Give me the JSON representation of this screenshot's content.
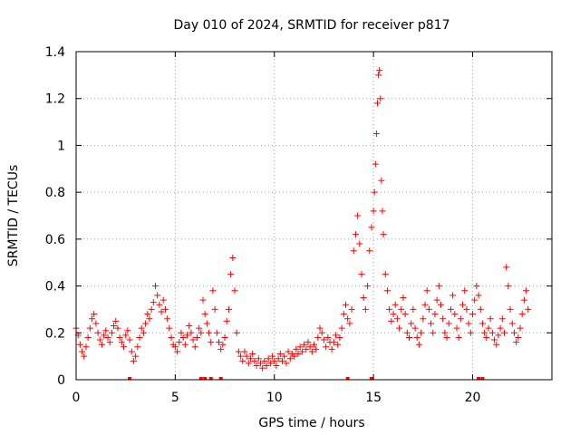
{
  "chart_data": {
    "type": "scatter",
    "title": "Day 010 of 2024, SRMTID for receiver p817",
    "xlabel": "GPS time / hours",
    "ylabel": "SRMTID / TECUs",
    "xlim": [
      0,
      24
    ],
    "ylim": [
      0,
      1.4
    ],
    "x_ticks": [
      0,
      5,
      10,
      15,
      20
    ],
    "x_tick_labels": [
      "0",
      "5",
      "10",
      "15",
      "20"
    ],
    "y_ticks": [
      0,
      0.2,
      0.4,
      0.6,
      0.8,
      1.0,
      1.2,
      1.4
    ],
    "y_tick_labels": [
      "0",
      "0.2",
      "0.4",
      "0.6",
      "0.8",
      "1",
      "1.2",
      "1.4"
    ],
    "grid": true,
    "marker": "plus",
    "color": "#ff0000",
    "series": [
      {
        "name": "SRMTID",
        "points": [
          [
            0.0,
            0.22
          ],
          [
            0.1,
            0.19
          ],
          [
            0.2,
            0.15
          ],
          [
            0.3,
            0.12
          ],
          [
            0.4,
            0.1
          ],
          [
            0.5,
            0.14
          ],
          [
            0.6,
            0.18
          ],
          [
            0.7,
            0.22
          ],
          [
            0.8,
            0.26
          ],
          [
            0.9,
            0.28
          ],
          [
            1.0,
            0.24
          ],
          [
            1.1,
            0.2
          ],
          [
            1.2,
            0.17
          ],
          [
            1.3,
            0.15
          ],
          [
            1.4,
            0.19
          ],
          [
            1.5,
            0.21
          ],
          [
            1.6,
            0.18
          ],
          [
            1.7,
            0.16
          ],
          [
            1.8,
            0.2
          ],
          [
            1.9,
            0.23
          ],
          [
            2.0,
            0.25
          ],
          [
            2.1,
            0.22
          ],
          [
            2.2,
            0.18
          ],
          [
            2.3,
            0.16
          ],
          [
            2.4,
            0.14
          ],
          [
            2.5,
            0.19
          ],
          [
            2.6,
            0.21
          ],
          [
            2.7,
            0.17
          ],
          [
            2.8,
            0.12
          ],
          [
            2.9,
            0.08
          ],
          [
            3.0,
            0.1
          ],
          [
            3.1,
            0.14
          ],
          [
            3.2,
            0.18
          ],
          [
            3.3,
            0.22
          ],
          [
            3.4,
            0.2
          ],
          [
            3.5,
            0.24
          ],
          [
            3.6,
            0.28
          ],
          [
            3.7,
            0.26
          ],
          [
            3.8,
            0.3
          ],
          [
            3.9,
            0.33
          ],
          [
            4.0,
            0.4
          ],
          [
            4.1,
            0.36
          ],
          [
            4.2,
            0.32
          ],
          [
            4.3,
            0.29
          ],
          [
            4.4,
            0.34
          ],
          [
            4.5,
            0.3
          ],
          [
            4.6,
            0.26
          ],
          [
            4.7,
            0.22
          ],
          [
            4.8,
            0.18
          ],
          [
            4.9,
            0.15
          ],
          [
            5.0,
            0.14
          ],
          [
            5.1,
            0.12
          ],
          [
            5.2,
            0.16
          ],
          [
            5.3,
            0.2
          ],
          [
            5.4,
            0.18
          ],
          [
            5.5,
            0.15
          ],
          [
            5.6,
            0.19
          ],
          [
            5.7,
            0.23
          ],
          [
            5.8,
            0.2
          ],
          [
            5.9,
            0.17
          ],
          [
            6.0,
            0.14
          ],
          [
            6.1,
            0.18
          ],
          [
            6.2,
            0.22
          ],
          [
            6.3,
            0.2
          ],
          [
            6.4,
            0.34
          ],
          [
            6.5,
            0.28
          ],
          [
            6.6,
            0.24
          ],
          [
            6.7,
            0.2
          ],
          [
            6.8,
            0.16
          ],
          [
            6.9,
            0.38
          ],
          [
            7.0,
            0.3
          ],
          [
            7.1,
            0.2
          ],
          [
            7.2,
            0.16
          ],
          [
            7.3,
            0.13
          ],
          [
            7.4,
            0.15
          ],
          [
            7.5,
            0.18
          ],
          [
            7.6,
            0.25
          ],
          [
            7.7,
            0.3
          ],
          [
            7.8,
            0.45
          ],
          [
            7.9,
            0.52
          ],
          [
            8.0,
            0.38
          ],
          [
            8.1,
            0.2
          ],
          [
            8.2,
            0.12
          ],
          [
            8.3,
            0.1
          ],
          [
            8.4,
            0.08
          ],
          [
            8.5,
            0.12
          ],
          [
            8.6,
            0.1
          ],
          [
            8.7,
            0.07
          ],
          [
            8.8,
            0.09
          ],
          [
            8.9,
            0.11
          ],
          [
            9.0,
            0.08
          ],
          [
            9.1,
            0.06
          ],
          [
            9.2,
            0.09
          ],
          [
            9.3,
            0.07
          ],
          [
            9.4,
            0.05
          ],
          [
            9.5,
            0.08
          ],
          [
            9.6,
            0.06
          ],
          [
            9.7,
            0.09
          ],
          [
            9.8,
            0.07
          ],
          [
            9.9,
            0.1
          ],
          [
            10.0,
            0.08
          ],
          [
            10.1,
            0.06
          ],
          [
            10.2,
            0.09
          ],
          [
            10.3,
            0.11
          ],
          [
            10.4,
            0.08
          ],
          [
            10.5,
            0.1
          ],
          [
            10.6,
            0.07
          ],
          [
            10.7,
            0.12
          ],
          [
            10.8,
            0.09
          ],
          [
            10.9,
            0.11
          ],
          [
            11.0,
            0.1
          ],
          [
            11.1,
            0.13
          ],
          [
            11.2,
            0.11
          ],
          [
            11.3,
            0.14
          ],
          [
            11.4,
            0.12
          ],
          [
            11.5,
            0.15
          ],
          [
            11.6,
            0.13
          ],
          [
            11.7,
            0.16
          ],
          [
            11.8,
            0.14
          ],
          [
            11.9,
            0.12
          ],
          [
            12.0,
            0.15
          ],
          [
            12.1,
            0.13
          ],
          [
            12.2,
            0.18
          ],
          [
            12.3,
            0.22
          ],
          [
            12.4,
            0.2
          ],
          [
            12.5,
            0.17
          ],
          [
            12.6,
            0.14
          ],
          [
            12.7,
            0.18
          ],
          [
            12.8,
            0.16
          ],
          [
            12.9,
            0.13
          ],
          [
            13.0,
            0.16
          ],
          [
            13.1,
            0.19
          ],
          [
            13.2,
            0.15
          ],
          [
            13.3,
            0.18
          ],
          [
            13.4,
            0.22
          ],
          [
            13.5,
            0.28
          ],
          [
            13.6,
            0.32
          ],
          [
            13.7,
            0.26
          ],
          [
            13.8,
            0.24
          ],
          [
            13.9,
            0.3
          ],
          [
            14.0,
            0.55
          ],
          [
            14.1,
            0.62
          ],
          [
            14.2,
            0.7
          ],
          [
            14.3,
            0.58
          ],
          [
            14.4,
            0.45
          ],
          [
            14.5,
            0.35
          ],
          [
            14.6,
            0.3
          ],
          [
            14.7,
            0.4
          ],
          [
            14.8,
            0.55
          ],
          [
            14.9,
            0.65
          ],
          [
            15.0,
            0.72
          ],
          [
            15.05,
            0.8
          ],
          [
            15.1,
            0.92
          ],
          [
            15.15,
            1.05
          ],
          [
            15.2,
            1.18
          ],
          [
            15.25,
            1.3
          ],
          [
            15.3,
            1.32
          ],
          [
            15.35,
            1.2
          ],
          [
            15.4,
            0.85
          ],
          [
            15.45,
            0.72
          ],
          [
            15.5,
            0.62
          ],
          [
            15.6,
            0.45
          ],
          [
            15.7,
            0.38
          ],
          [
            15.8,
            0.3
          ],
          [
            15.9,
            0.25
          ],
          [
            16.0,
            0.28
          ],
          [
            16.1,
            0.32
          ],
          [
            16.2,
            0.26
          ],
          [
            16.3,
            0.22
          ],
          [
            16.4,
            0.3
          ],
          [
            16.5,
            0.35
          ],
          [
            16.6,
            0.28
          ],
          [
            16.7,
            0.2
          ],
          [
            16.8,
            0.18
          ],
          [
            16.9,
            0.24
          ],
          [
            17.0,
            0.3
          ],
          [
            17.1,
            0.22
          ],
          [
            17.2,
            0.18
          ],
          [
            17.3,
            0.15
          ],
          [
            17.4,
            0.2
          ],
          [
            17.5,
            0.26
          ],
          [
            17.6,
            0.32
          ],
          [
            17.7,
            0.38
          ],
          [
            17.8,
            0.3
          ],
          [
            17.9,
            0.24
          ],
          [
            18.0,
            0.2
          ],
          [
            18.1,
            0.28
          ],
          [
            18.2,
            0.34
          ],
          [
            18.3,
            0.4
          ],
          [
            18.4,
            0.32
          ],
          [
            18.5,
            0.26
          ],
          [
            18.6,
            0.2
          ],
          [
            18.7,
            0.18
          ],
          [
            18.8,
            0.24
          ],
          [
            18.9,
            0.3
          ],
          [
            19.0,
            0.36
          ],
          [
            19.1,
            0.28
          ],
          [
            19.2,
            0.22
          ],
          [
            19.3,
            0.18
          ],
          [
            19.4,
            0.26
          ],
          [
            19.5,
            0.32
          ],
          [
            19.6,
            0.38
          ],
          [
            19.7,
            0.3
          ],
          [
            19.8,
            0.24
          ],
          [
            19.9,
            0.2
          ],
          [
            20.0,
            0.28
          ],
          [
            20.1,
            0.34
          ],
          [
            20.2,
            0.4
          ],
          [
            20.3,
            0.36
          ],
          [
            20.4,
            0.3
          ],
          [
            20.5,
            0.24
          ],
          [
            20.6,
            0.2
          ],
          [
            20.7,
            0.18
          ],
          [
            20.8,
            0.22
          ],
          [
            20.9,
            0.26
          ],
          [
            21.0,
            0.2
          ],
          [
            21.1,
            0.17
          ],
          [
            21.2,
            0.15
          ],
          [
            21.3,
            0.19
          ],
          [
            21.4,
            0.22
          ],
          [
            21.5,
            0.26
          ],
          [
            21.6,
            0.2
          ],
          [
            21.7,
            0.48
          ],
          [
            21.8,
            0.4
          ],
          [
            21.9,
            0.3
          ],
          [
            22.0,
            0.24
          ],
          [
            22.1,
            0.2
          ],
          [
            22.2,
            0.16
          ],
          [
            22.3,
            0.18
          ],
          [
            22.4,
            0.22
          ],
          [
            22.5,
            0.28
          ],
          [
            22.6,
            0.34
          ],
          [
            22.7,
            0.38
          ],
          [
            22.8,
            0.3
          ]
        ]
      }
    ],
    "bottom_markers_x": [
      2.7,
      6.3,
      6.5,
      6.8,
      7.3,
      13.7,
      14.9,
      20.3,
      20.5
    ]
  }
}
